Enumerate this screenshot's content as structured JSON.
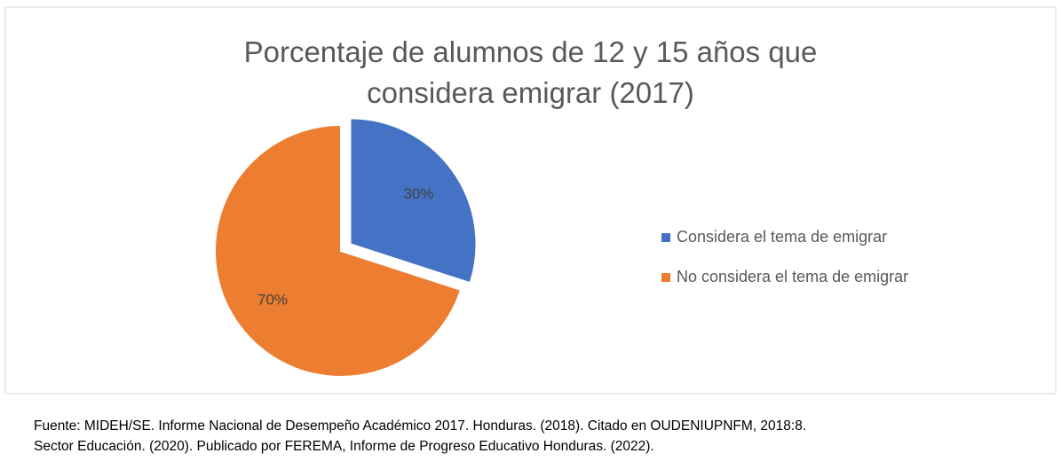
{
  "chart_data": {
    "type": "pie",
    "title": "Porcentaje de alumnos de 12 y 15 años que considera emigrar (2017)",
    "categories": [
      "Considera el tema de emigrar",
      "No considera el tema de emigrar"
    ],
    "values": [
      30,
      70
    ],
    "value_labels": [
      "30%",
      "70%"
    ],
    "colors": [
      "#4472c4",
      "#ed7d31"
    ],
    "exploded": [
      true,
      false
    ],
    "legend": "right",
    "source": [
      "Fuente: MIDEH/SE. Informe Nacional de Desempeño Académico 2017. Honduras. (2018). Citado en OUDENIUPNFM, 2018:8.",
      "Sector Educación. (2020). Publicado por FEREMA, Informe de Progreso Educativo Honduras. (2022)."
    ]
  }
}
